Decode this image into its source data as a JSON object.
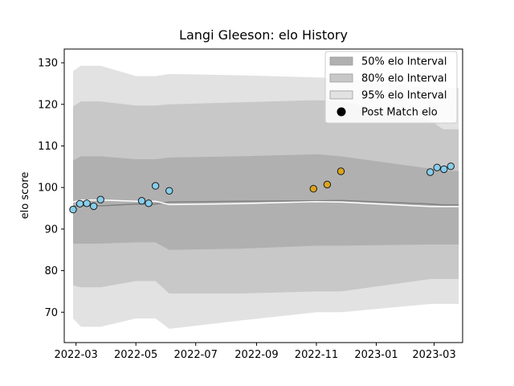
{
  "chart_data": {
    "type": "scatter",
    "title": "Langi Gleeson: elo History",
    "xlabel": "",
    "ylabel": "elo score",
    "xlim": [
      "2022-02-17",
      "2023-03-30"
    ],
    "ylim": [
      62.7,
      133.3
    ],
    "grid": false,
    "legend_position": "top-right",
    "x_ticks": [
      "2022-03",
      "2022-05",
      "2022-07",
      "2022-09",
      "2022-11",
      "2023-01",
      "2023-03"
    ],
    "y_ticks": [
      70,
      80,
      90,
      100,
      110,
      120,
      130
    ],
    "legend": [
      {
        "label": "50% elo Interval",
        "color": "#b0b0b0"
      },
      {
        "label": "80% elo Interval",
        "color": "#c8c8c8"
      },
      {
        "label": "95% elo Interval",
        "color": "#e2e2e2"
      },
      {
        "label": "Post Match elo",
        "color": "#000000"
      }
    ],
    "band_dates": [
      "2022-02-26",
      "2022-03-06",
      "2022-03-26",
      "2022-05-01",
      "2022-05-21",
      "2022-06-04",
      "2022-08-15",
      "2022-11-01",
      "2022-11-26",
      "2023-02-26",
      "2023-03-10",
      "2023-03-26"
    ],
    "bands": {
      "p95": {
        "lower": [
          68.5,
          66.5,
          66.5,
          68.5,
          68.5,
          66.0,
          68.0,
          70.0,
          70.0,
          72.0,
          72.0,
          72.0
        ],
        "upper": [
          128.0,
          129.3,
          129.3,
          126.8,
          126.8,
          127.3,
          127.0,
          126.5,
          126.3,
          124.0,
          124.0,
          124.0
        ]
      },
      "p80": {
        "lower": [
          76.5,
          76.0,
          76.0,
          77.5,
          77.5,
          74.5,
          74.5,
          75.0,
          75.0,
          78.0,
          78.0,
          78.0
        ],
        "upper": [
          119.5,
          120.7,
          120.7,
          119.7,
          119.7,
          120.0,
          120.5,
          121.0,
          120.8,
          116.0,
          114.0,
          114.0
        ]
      },
      "p50": {
        "lower": [
          86.5,
          86.5,
          86.5,
          86.8,
          86.8,
          85.0,
          85.3,
          86.0,
          86.0,
          86.3,
          86.3,
          86.3
        ],
        "upper": [
          106.5,
          107.5,
          107.5,
          106.8,
          106.8,
          107.2,
          107.5,
          108.0,
          107.5,
          104.5,
          104.0,
          104.0
        ]
      }
    },
    "median_line": {
      "color": "#808080",
      "x": [
        "2022-02-26",
        "2022-03-06",
        "2022-03-26",
        "2022-05-01",
        "2022-05-21",
        "2022-06-04",
        "2022-08-15",
        "2022-11-01",
        "2022-11-26",
        "2023-02-26",
        "2023-03-10",
        "2023-03-26"
      ],
      "y": [
        95.5,
        95.6,
        95.6,
        96.0,
        96.0,
        96.5,
        96.7,
        96.8,
        96.9,
        96.0,
        95.8,
        95.8
      ]
    },
    "mean_line": {
      "color": "#ffffff",
      "x": [
        "2022-02-26",
        "2022-03-06",
        "2022-03-26",
        "2022-05-01",
        "2022-05-21",
        "2022-06-04",
        "2022-08-15",
        "2022-11-01",
        "2022-11-26",
        "2023-02-26",
        "2023-03-10",
        "2023-03-26"
      ],
      "y": [
        96.5,
        97.0,
        97.0,
        96.7,
        96.7,
        95.9,
        96.1,
        96.6,
        96.5,
        95.4,
        95.4,
        95.4
      ]
    },
    "series": [
      {
        "name": "Post Match elo",
        "edge_color": "#1a1a1a",
        "points": [
          {
            "x": "2022-02-26",
            "y": 94.7,
            "color": "#87ceeb"
          },
          {
            "x": "2022-03-05",
            "y": 96.1,
            "color": "#87ceeb"
          },
          {
            "x": "2022-03-12",
            "y": 96.2,
            "color": "#87ceeb"
          },
          {
            "x": "2022-03-19",
            "y": 95.5,
            "color": "#87ceeb"
          },
          {
            "x": "2022-03-26",
            "y": 97.1,
            "color": "#87ceeb"
          },
          {
            "x": "2022-05-07",
            "y": 96.8,
            "color": "#87ceeb"
          },
          {
            "x": "2022-05-14",
            "y": 96.2,
            "color": "#87ceeb"
          },
          {
            "x": "2022-05-21",
            "y": 100.4,
            "color": "#87ceeb"
          },
          {
            "x": "2022-06-04",
            "y": 99.2,
            "color": "#87ceeb"
          },
          {
            "x": "2022-10-29",
            "y": 99.7,
            "color": "#daa520"
          },
          {
            "x": "2022-11-12",
            "y": 100.7,
            "color": "#daa520"
          },
          {
            "x": "2022-11-26",
            "y": 103.9,
            "color": "#daa520"
          },
          {
            "x": "2023-02-25",
            "y": 103.7,
            "color": "#87ceeb"
          },
          {
            "x": "2023-03-04",
            "y": 104.8,
            "color": "#87ceeb"
          },
          {
            "x": "2023-03-11",
            "y": 104.4,
            "color": "#87ceeb"
          },
          {
            "x": "2023-03-18",
            "y": 105.1,
            "color": "#87ceeb"
          }
        ]
      }
    ]
  }
}
